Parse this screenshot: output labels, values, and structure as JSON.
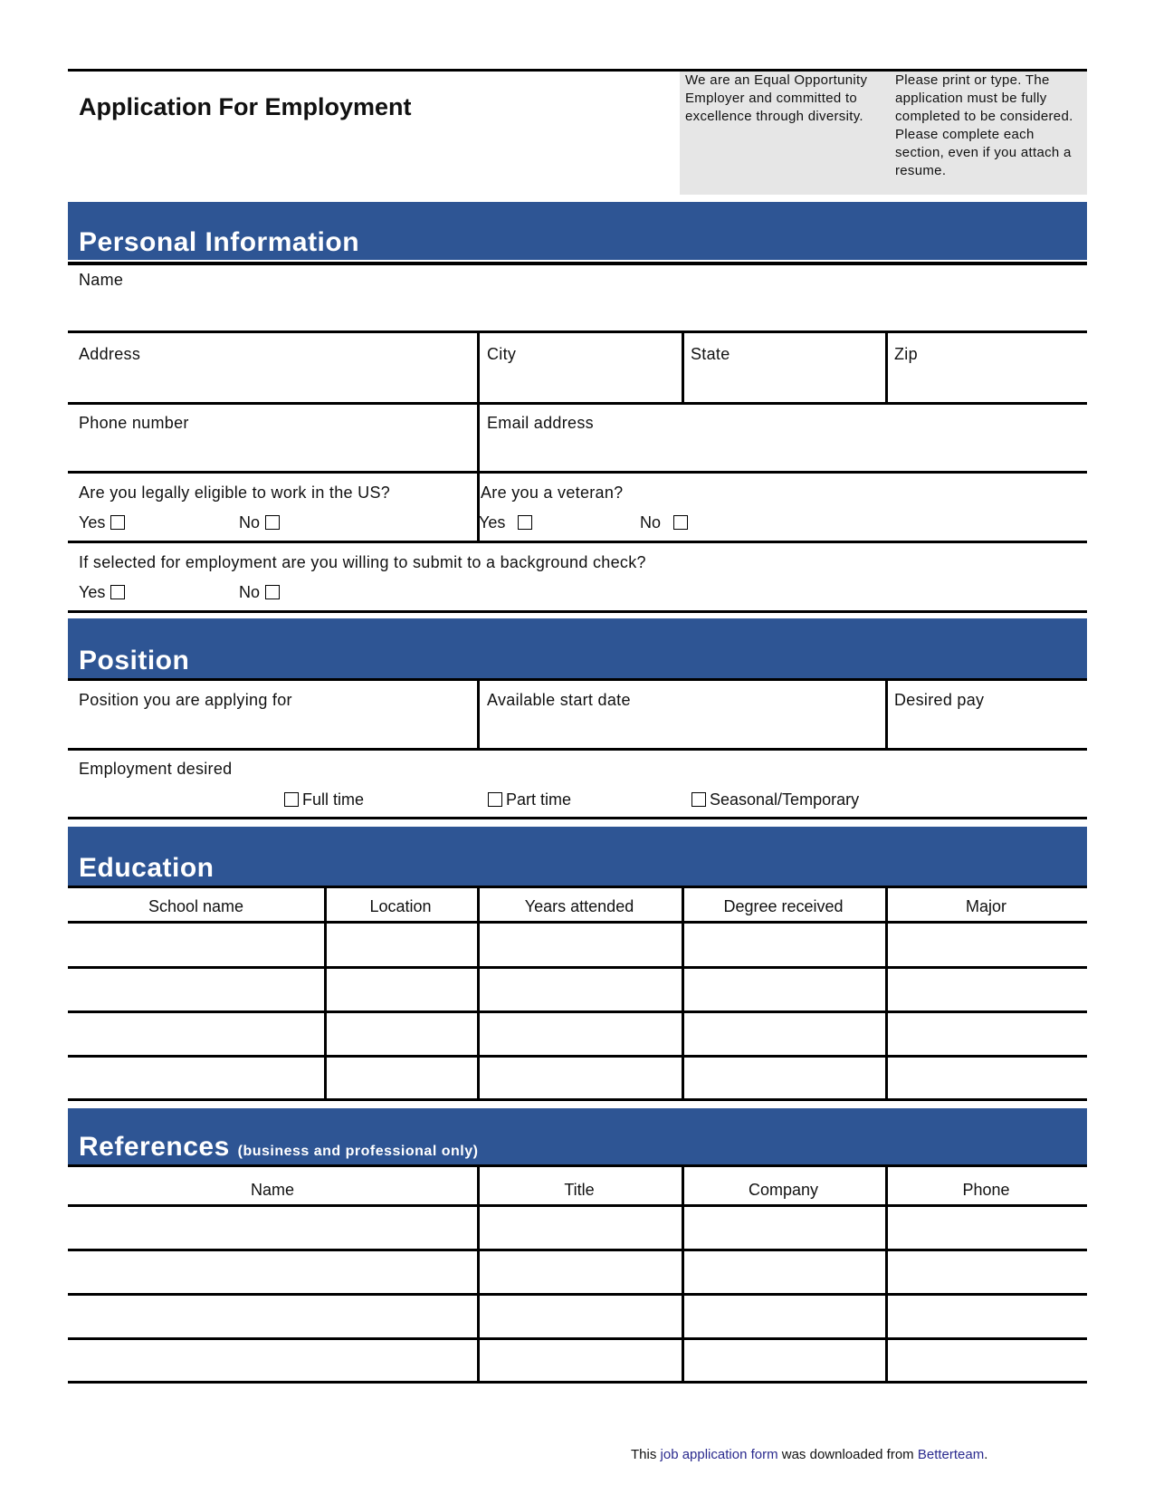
{
  "header": {
    "title": "Application For Employment",
    "eeo_note": "We are an Equal Opportunity Employer and committed to excellence through diversity.",
    "instructions": "Please print or type. The application must be fully completed to be considered. Please complete each section, even if you attach a resume."
  },
  "personal": {
    "title": "Personal Information",
    "name": "Name",
    "address": "Address",
    "city": "City",
    "state": "State",
    "zip": "Zip",
    "phone": "Phone number",
    "email": "Email address",
    "eligible_q": "Are you legally eligible to work in the US?",
    "veteran_q": "Are you a veteran?",
    "background_q": "If selected for employment are you willing to submit to a background check?",
    "yes": "Yes",
    "no": "No"
  },
  "position": {
    "title": "Position",
    "applying": "Position you are applying for",
    "start": "Available start date",
    "pay": "Desired pay",
    "employment": "Employment desired",
    "options": [
      "Full time",
      "Part time",
      "Seasonal/Temporary"
    ]
  },
  "education": {
    "title": "Education",
    "columns": [
      "School name",
      "Location",
      "Years attended",
      "Degree received",
      "Major"
    ]
  },
  "references": {
    "title": "References",
    "subtitle": "(business and professional only)",
    "columns": [
      "Name",
      "Title",
      "Company",
      "Phone"
    ]
  },
  "footer": {
    "pre": "This ",
    "link1": "job application form",
    "mid": " was downloaded from ",
    "link2": "Betterteam",
    "post": "."
  },
  "colors": {
    "band": "#2e5594",
    "grey_box": "#e6e6e6",
    "link": "#2a2a8e"
  }
}
